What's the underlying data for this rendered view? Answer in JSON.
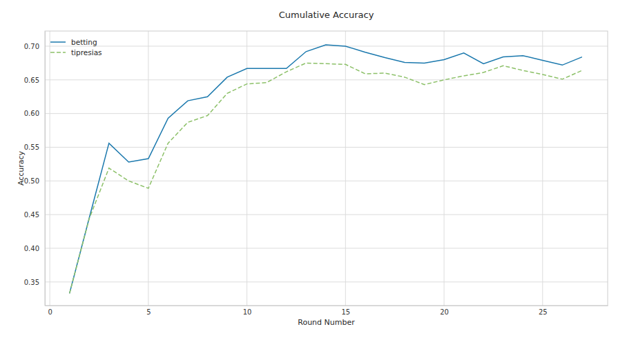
{
  "chart_data": {
    "type": "line",
    "title": "Cumulative Accuracy",
    "x_label": "Round Number",
    "y_label": "Accuracy",
    "x": [
      1,
      2,
      3,
      4,
      5,
      6,
      7,
      8,
      9,
      10,
      11,
      12,
      13,
      14,
      15,
      16,
      17,
      18,
      19,
      20,
      21,
      22,
      23,
      24,
      25,
      26,
      27
    ],
    "series": [
      {
        "name": "betting",
        "color": "#1a78ad",
        "line_style": "solid",
        "values": [
          0.333,
          0.445,
          0.556,
          0.528,
          0.533,
          0.593,
          0.619,
          0.625,
          0.654,
          0.667,
          0.667,
          0.667,
          0.692,
          0.702,
          0.7,
          0.691,
          0.683,
          0.676,
          0.675,
          0.68,
          0.69,
          0.674,
          0.684,
          0.686,
          0.679,
          0.672,
          0.684
        ]
      },
      {
        "name": "tipresias",
        "color": "#8cc068",
        "line_style": "dashed",
        "values": [
          0.333,
          0.444,
          0.519,
          0.5,
          0.489,
          0.556,
          0.587,
          0.597,
          0.63,
          0.644,
          0.646,
          0.662,
          0.675,
          0.674,
          0.673,
          0.659,
          0.66,
          0.654,
          0.643,
          0.65,
          0.656,
          0.661,
          0.671,
          0.664,
          0.658,
          0.651,
          0.664
        ]
      }
    ],
    "xlim": [
      -0.25,
      28.3
    ],
    "xticks": [
      0,
      5,
      10,
      15,
      20,
      25
    ],
    "ylim": [
      0.315,
      0.7225
    ],
    "yticks": [
      0.35,
      {
        "value": 0.4,
        "label": "0.40"
      },
      0.45,
      {
        "value": 0.5,
        "label": "0.50"
      },
      0.55,
      {
        "value": 0.6,
        "label": "0.60"
      },
      0.65,
      {
        "value": 0.7,
        "label": "0.70"
      }
    ],
    "grid": true,
    "legend": "upper left"
  }
}
